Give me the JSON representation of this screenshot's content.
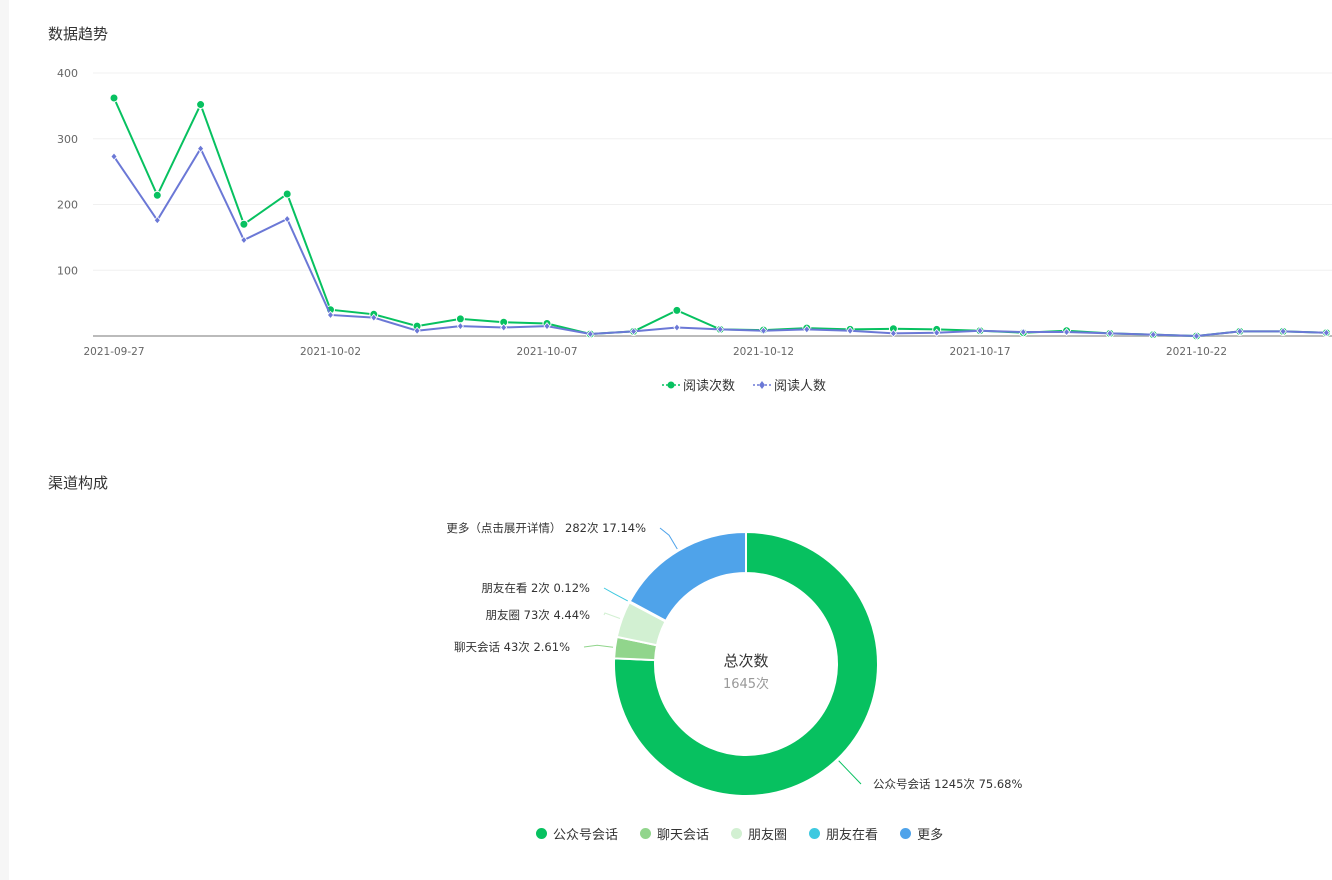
{
  "chart_data": [
    {
      "type": "line",
      "title": "数据趋势",
      "x": [
        "2021-09-27",
        "2021-09-28",
        "2021-09-29",
        "2021-09-30",
        "2021-10-01",
        "2021-10-02",
        "2021-10-03",
        "2021-10-04",
        "2021-10-05",
        "2021-10-06",
        "2021-10-07",
        "2021-10-08",
        "2021-10-09",
        "2021-10-10",
        "2021-10-11",
        "2021-10-12",
        "2021-10-13",
        "2021-10-14",
        "2021-10-15",
        "2021-10-16",
        "2021-10-17",
        "2021-10-18",
        "2021-10-19",
        "2021-10-20",
        "2021-10-21",
        "2021-10-22",
        "2021-10-23",
        "2021-10-24",
        "2021-10-25"
      ],
      "x_tick_labels": [
        "2021-09-27",
        "2021-10-02",
        "2021-10-07",
        "2021-10-12",
        "2021-10-17",
        "2021-10-22"
      ],
      "y_ticks": [
        "100",
        "200",
        "300",
        "400"
      ],
      "ylim": [
        0,
        400
      ],
      "grid": true,
      "legend_placement": "bottom",
      "series": [
        {
          "name": "阅读次数",
          "color": "#07c160",
          "marker": "circle",
          "values": [
            362,
            214,
            352,
            170,
            216,
            40,
            33,
            15,
            26,
            21,
            19,
            3,
            7,
            39,
            10,
            9,
            12,
            10,
            11,
            10,
            8,
            5,
            8,
            4,
            2,
            0,
            7,
            7,
            5
          ]
        },
        {
          "name": "阅读人数",
          "color": "#6b78d6",
          "marker": "diamond",
          "values": [
            273,
            176,
            285,
            146,
            178,
            32,
            28,
            8,
            15,
            13,
            15,
            3,
            7,
            13,
            10,
            8,
            10,
            8,
            4,
            5,
            8,
            6,
            6,
            4,
            2,
            0,
            7,
            7,
            5
          ]
        }
      ]
    },
    {
      "type": "pie",
      "title": "渠道构成",
      "donut": true,
      "center_title": "总次数",
      "center_value": "1645次",
      "legend_placement": "bottom",
      "slices": [
        {
          "name": "公众号会话",
          "value": 1245,
          "percent": "75.68%",
          "label": "公众号会话 1245次 75.68%",
          "color": "#07c160"
        },
        {
          "name": "聊天会话",
          "value": 43,
          "percent": "2.61%",
          "label": "聊天会话 43次 2.61%",
          "color": "#91d58c"
        },
        {
          "name": "朋友圈",
          "value": 73,
          "percent": "4.44%",
          "label": "朋友圈 73次 4.44%",
          "color": "#d2f0d2"
        },
        {
          "name": "朋友在看",
          "value": 2,
          "percent": "0.12%",
          "label": "朋友在看 2次 0.12%",
          "color": "#3ec9e0"
        },
        {
          "name": "更多",
          "value": 282,
          "percent": "17.14%",
          "label": "更多（点击展开详情） 282次 17.14%",
          "color": "#4fa3ea"
        }
      ]
    }
  ]
}
